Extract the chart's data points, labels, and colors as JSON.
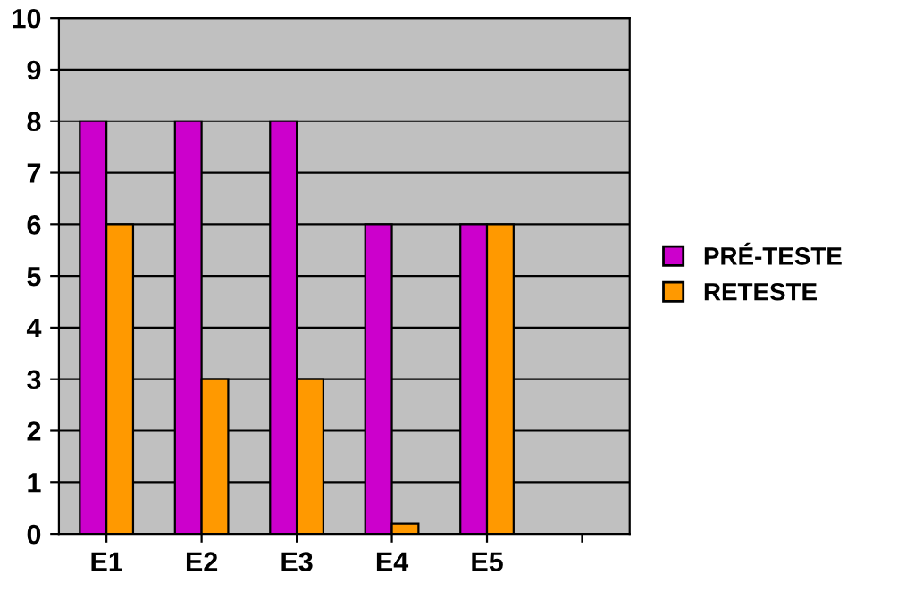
{
  "chart_data": {
    "type": "bar",
    "categories": [
      "E1",
      "E2",
      "E3",
      "E4",
      "E5",
      null
    ],
    "series": [
      {
        "name": "PRÉ-TESTE",
        "color": "#cc00cc",
        "values": [
          8,
          8,
          8,
          6,
          6,
          null
        ]
      },
      {
        "name": "RETESTE",
        "color": "#ff9900",
        "values": [
          6,
          3,
          3,
          0.2,
          6,
          null
        ]
      }
    ],
    "ylim": [
      0,
      10
    ],
    "yticks": [
      0,
      1,
      2,
      3,
      4,
      5,
      6,
      7,
      8,
      9,
      10
    ],
    "grid": "y",
    "legend": "right"
  }
}
